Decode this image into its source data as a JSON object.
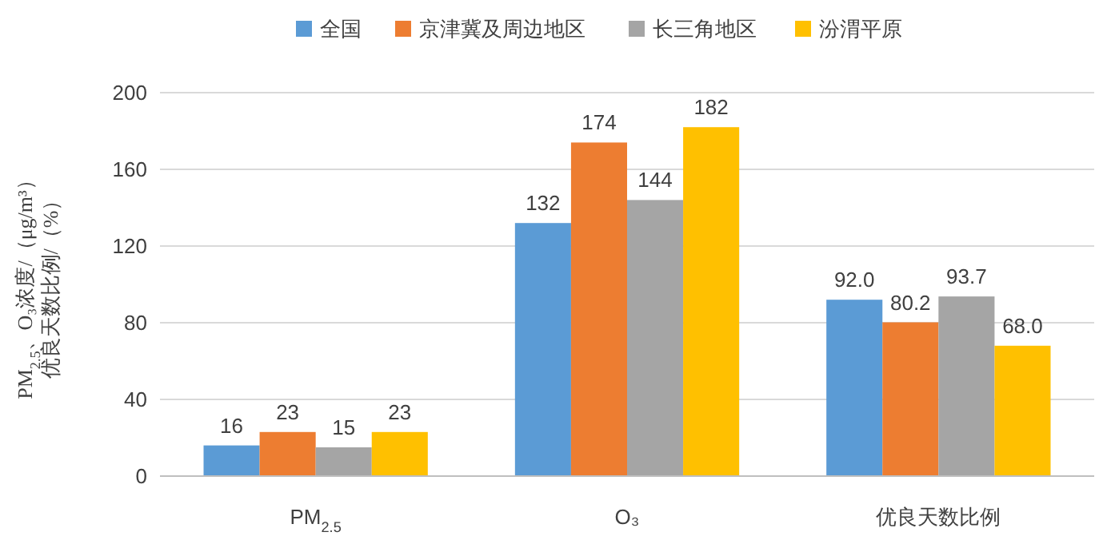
{
  "chart_data": {
    "type": "bar",
    "ylabel": [
      "PM$_{2.5}$、O₃浓度/（μg/m³）",
      "优良天数比例/（%）"
    ],
    "categories": [
      "PM$_{2.5}$",
      "O₃",
      "优良天数比例"
    ],
    "series": [
      {
        "name": "全国",
        "color": "#5b9bd5",
        "values": [
          16,
          132,
          92.0
        ],
        "value_labels": [
          "16",
          "132",
          "92.0"
        ]
      },
      {
        "name": "京津冀及周边地区",
        "color": "#ed7d31",
        "values": [
          23,
          174,
          80.2
        ],
        "value_labels": [
          "23",
          "174",
          "80.2"
        ]
      },
      {
        "name": "长三角地区",
        "color": "#a5a5a5",
        "values": [
          15,
          144,
          93.7
        ],
        "value_labels": [
          "15",
          "144",
          "93.7"
        ]
      },
      {
        "name": "汾渭平原",
        "color": "#ffc000",
        "values": [
          23,
          182,
          68.0
        ],
        "value_labels": [
          "23",
          "182",
          "68.0"
        ]
      }
    ],
    "ylim": [
      0,
      200
    ],
    "yticks": [
      0,
      40,
      80,
      120,
      160,
      200
    ],
    "grid": "y",
    "legend": "top"
  }
}
